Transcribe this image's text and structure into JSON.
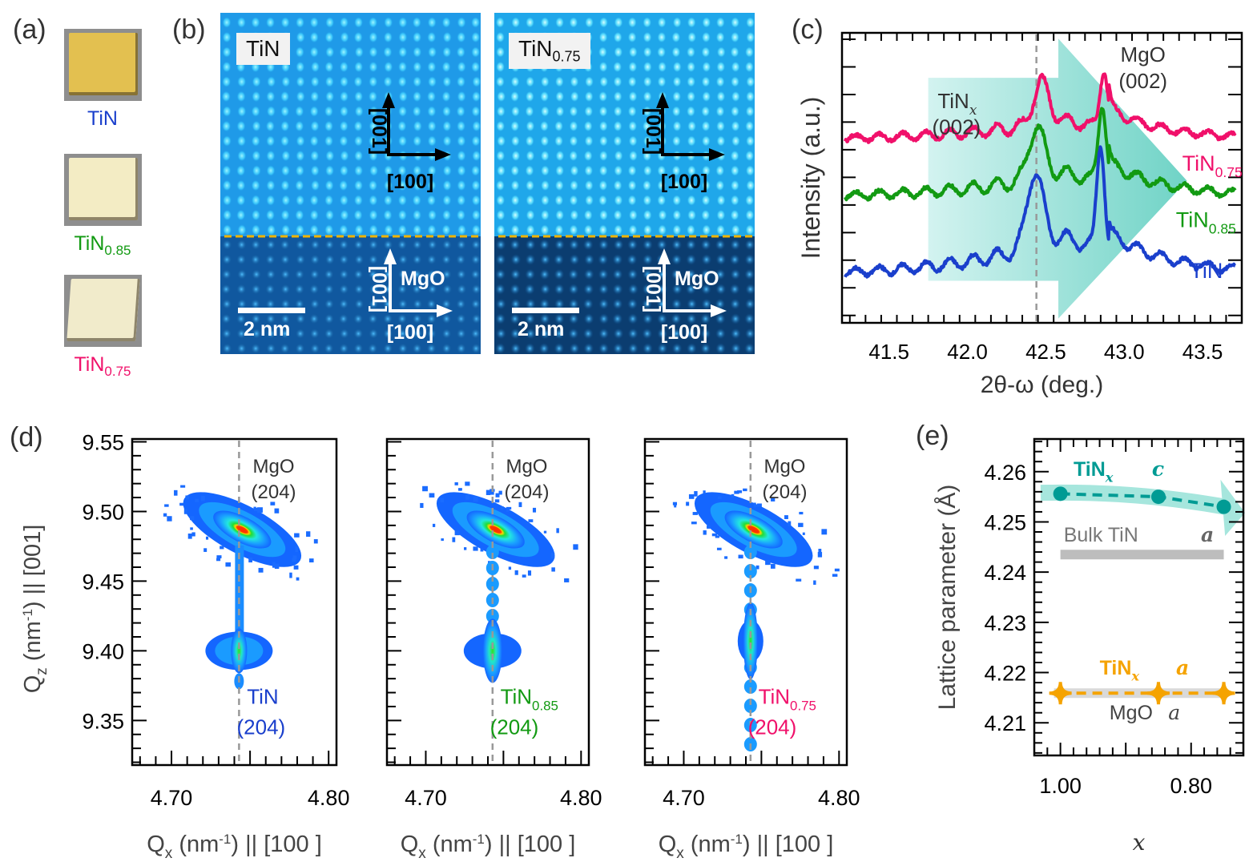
{
  "panels": {
    "a": {
      "label": "(a)",
      "samples": [
        {
          "name": "TiN",
          "base": "TiN",
          "sub": "",
          "color": "#1a3fcc",
          "chip_color": "#e3c050"
        },
        {
          "name": "TiN0.85",
          "base": "TiN",
          "sub": "0.85",
          "color": "#129a12",
          "chip_color": "#f3ecc4"
        },
        {
          "name": "TiN0.75",
          "base": "TiN",
          "sub": "0.75",
          "color": "#f0106a",
          "chip_color": "#f1ebcb"
        }
      ]
    },
    "b": {
      "label": "(b)",
      "images": [
        {
          "tag_base": "TiN",
          "tag_sub": "",
          "film_axes": {
            "vertical": "[001]",
            "horizontal": "[100]"
          },
          "substrate": "MgO",
          "sub_axes": {
            "vertical": "[001]",
            "horizontal": "[100]"
          },
          "scale_bar": "2 nm"
        },
        {
          "tag_base": "TiN",
          "tag_sub": "0.75",
          "film_axes": {
            "vertical": "[001]",
            "horizontal": "[100]"
          },
          "substrate": "MgO",
          "sub_axes": {
            "vertical": "[001]",
            "horizontal": "[100]"
          },
          "scale_bar": "2 nm"
        }
      ],
      "interface_color": "#f0b400"
    },
    "c": {
      "label": "(c)"
    },
    "d": {
      "label": "(d)"
    },
    "e": {
      "label": "(e)"
    }
  },
  "chart_data": [
    {
      "id": "c",
      "type": "line",
      "title": "",
      "xlabel": "2θ-ω (deg.)",
      "ylabel": "Intensity (a.u.)",
      "xlim": [
        41.2,
        43.75
      ],
      "xticks": [
        41.5,
        42.0,
        42.5,
        43.0,
        43.5
      ],
      "xtick_labels": [
        "41.5",
        "42.0",
        "42.5",
        "43.0",
        "43.5"
      ],
      "ylim": [
        0,
        10
      ],
      "yticks_unlabeled": true,
      "reference_line_x": 42.44,
      "annotations": [
        {
          "text": "TiN",
          "sub": "x",
          "line2": "(002)",
          "x": 41.9,
          "y": 7.3,
          "color": "#333333"
        },
        {
          "text": "MgO",
          "line2": "(002)",
          "x": 43.1,
          "y": 9.0,
          "color": "#333333"
        }
      ],
      "arrow": {
        "from_x": 41.75,
        "to_x": 43.4,
        "color": "#7fd8cc",
        "meaning": "peak shift with decreasing x"
      },
      "series": [
        {
          "name": "TiN0.75",
          "label_base": "TiN",
          "label_sub": "0.75",
          "color": "#f0106a",
          "offset": 6.3,
          "peaks": [
            {
              "x": 42.47,
              "h": 1.45
            },
            {
              "x": 42.87,
              "h": 2.0
            }
          ],
          "fringe_amp": 0.18,
          "base_slope": 0.35
        },
        {
          "name": "TiN0.85",
          "label_base": "TiN",
          "label_sub": "0.85",
          "color": "#129a12",
          "offset": 4.3,
          "peaks": [
            {
              "x": 42.44,
              "h": 1.8
            },
            {
              "x": 42.86,
              "h": 2.7
            }
          ],
          "fringe_amp": 0.2,
          "base_slope": 0.45
        },
        {
          "name": "TiN",
          "label_base": "TiN",
          "label_sub": "",
          "color": "#1a3fcc",
          "offset": 1.6,
          "peaks": [
            {
              "x": 42.43,
              "h": 2.6
            },
            {
              "x": 42.85,
              "h": 3.7
            }
          ],
          "fringe_amp": 0.22,
          "base_slope": 0.7
        }
      ]
    },
    {
      "id": "d",
      "type": "heatmap",
      "maps": [
        {
          "film": "TiN",
          "film_sub": "",
          "film_color": "#1a3fcc",
          "film_peak_qz": 9.4,
          "streak": "continuous"
        },
        {
          "film": "TiN",
          "film_sub": "0.85",
          "film_color": "#129a12",
          "film_peak_qz": 9.4,
          "streak": "fringed"
        },
        {
          "film": "TiN",
          "film_sub": "0.75",
          "film_color": "#f0106a",
          "film_peak_qz": 9.407,
          "streak": "fringed-long"
        }
      ],
      "substrate_label": "MgO",
      "substrate_hkl": "(204)",
      "film_hkl": "(204)",
      "substrate_peak": {
        "qx": 4.745,
        "qz": 9.487
      },
      "reference_line_qx": 4.743,
      "xlabel_main": "Q",
      "xlabel_sub": "x",
      "xlabel_rest": " (nm",
      "xlabel_sup": "-1",
      "xlabel_tail": ") || [100 ]",
      "ylabel_main": "Q",
      "ylabel_sub": "z",
      "ylabel_rest": " (nm",
      "ylabel_sup": "-1",
      "ylabel_tail": ") || [001]",
      "xlim": [
        4.675,
        4.805
      ],
      "ylim": [
        9.318,
        9.552
      ],
      "xticks": [
        4.7,
        4.8
      ],
      "xtick_labels": [
        "4.70",
        "4.80"
      ],
      "yticks": [
        9.35,
        9.4,
        9.45,
        9.5,
        9.55
      ],
      "ytick_labels": [
        "9.35",
        "9.40",
        "9.45",
        "9.50",
        "9.55"
      ]
    },
    {
      "id": "e",
      "type": "line",
      "xlabel": "x",
      "ylabel": "Lattice parameter (Å)",
      "xlim": [
        1.04,
        0.72
      ],
      "ylim": [
        4.2035,
        4.2665
      ],
      "xticks": [
        1.0,
        0.8
      ],
      "xtick_labels": [
        "1.00",
        "0.80"
      ],
      "yticks": [
        4.21,
        4.22,
        4.23,
        4.24,
        4.25,
        4.26
      ],
      "ytick_labels": [
        "4.21",
        "4.22",
        "4.23",
        "4.24",
        "4.25",
        "4.26"
      ],
      "series": [
        {
          "name": "TiNx c",
          "label_base": "TiN",
          "label_sub": "x",
          "label_var": "c",
          "color": "#009b94",
          "marker": "circle",
          "x": [
            1.0,
            0.85,
            0.75
          ],
          "y": [
            4.2556,
            4.255,
            4.253
          ]
        },
        {
          "name": "TiNx a",
          "label_base": "TiN",
          "label_sub": "x",
          "label_var": "a",
          "color": "#f5a300",
          "marker": "diamond",
          "x": [
            1.0,
            0.85,
            0.75
          ],
          "y": [
            4.2159,
            4.2159,
            4.2159
          ]
        }
      ],
      "reference_lines": [
        {
          "name": "Bulk TiN a",
          "label": "Bulk  TiN",
          "var": "a",
          "y": 4.2435,
          "x_from": 1.0,
          "x_to": 0.75,
          "color": "#bdbdbd"
        },
        {
          "name": "MgO a",
          "label": "MgO",
          "var": "a",
          "y": 4.2159,
          "x_from": 1.0,
          "x_to": 0.75,
          "color": "#d9d9d9"
        }
      ]
    }
  ]
}
